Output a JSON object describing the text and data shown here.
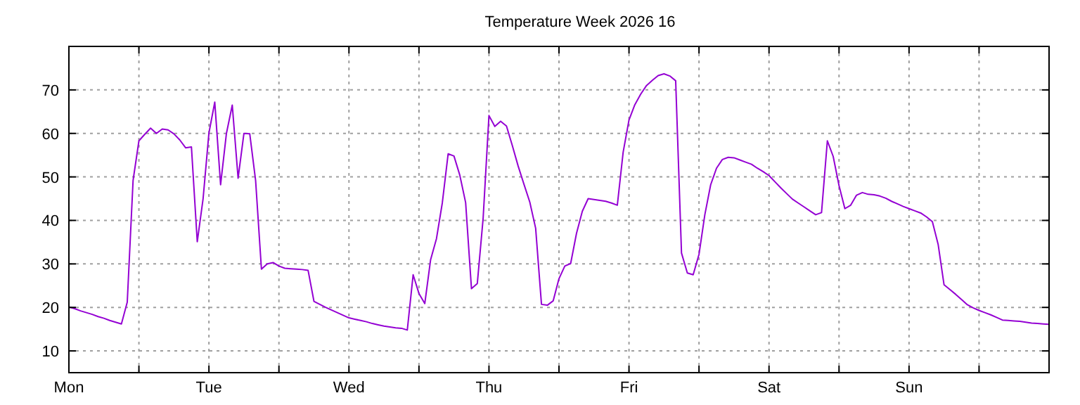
{
  "chart_data": {
    "type": "line",
    "title": "Temperature Week 2026 16",
    "categories": [
      "Mon",
      null,
      null,
      null,
      null,
      null,
      null,
      null,
      null,
      null,
      null,
      null,
      null,
      null,
      null,
      null,
      null,
      null,
      null,
      null,
      null,
      null,
      null,
      null,
      "Tue",
      null,
      null,
      null,
      null,
      null,
      null,
      null,
      null,
      null,
      null,
      null,
      null,
      null,
      null,
      null,
      null,
      null,
      null,
      null,
      null,
      null,
      null,
      null,
      "Wed",
      null,
      null,
      null,
      null,
      null,
      null,
      null,
      null,
      null,
      null,
      null,
      null,
      null,
      null,
      null,
      null,
      null,
      null,
      null,
      null,
      null,
      null,
      null,
      "Thu",
      null,
      null,
      null,
      null,
      null,
      null,
      null,
      null,
      null,
      null,
      null,
      null,
      null,
      null,
      null,
      null,
      null,
      null,
      null,
      null,
      null,
      null,
      null,
      "Fri",
      null,
      null,
      null,
      null,
      null,
      null,
      null,
      null,
      null,
      null,
      null,
      null,
      null,
      null,
      null,
      null,
      null,
      null,
      null,
      null,
      null,
      null,
      null,
      "Sat",
      null,
      null,
      null,
      null,
      null,
      null,
      null,
      null,
      null,
      null,
      null,
      null,
      null,
      null,
      null,
      null,
      null,
      null,
      null,
      null,
      null,
      null,
      null,
      "Sun",
      null,
      null,
      null,
      null,
      null,
      null,
      null,
      null,
      null,
      null,
      null,
      null,
      null,
      null,
      null,
      null,
      null,
      null,
      null,
      null,
      null,
      null,
      null,
      null
    ],
    "ylim": [
      5,
      80
    ],
    "yticks": [
      10,
      20,
      30,
      40,
      50,
      60,
      70
    ],
    "grid": true,
    "marker": "none",
    "line_style": "solid",
    "series": [
      {
        "color": "#9400d3",
        "values": [
          20.1,
          19.7,
          19.2,
          18.8,
          18.4,
          17.9,
          17.5,
          17.0,
          16.6,
          16.2,
          21.2,
          49.2,
          58.3,
          59.8,
          61.2,
          60.0,
          61.0,
          60.8,
          59.9,
          58.5,
          56.7,
          56.9,
          35.1,
          45.0,
          60.1,
          67.2,
          48.2,
          60.0,
          66.5,
          49.7,
          60,
          59.9,
          49.2,
          28.8,
          30.0,
          30.3,
          29.5,
          29.0,
          28.9,
          28.8,
          28.7,
          28.5,
          21.4,
          20.7,
          20.0,
          19.4,
          18.8,
          18.2,
          17.6,
          17.3,
          17.0,
          16.7,
          16.3,
          16.0,
          15.7,
          15.5,
          15.3,
          15.2,
          14.8,
          27.5,
          23.2,
          20.9,
          31.0,
          35.8,
          44.0,
          55.3,
          54.8,
          50.4,
          44.1,
          24.3,
          25.5,
          40.5,
          64.1,
          61.6,
          62.8,
          61.7,
          57.2,
          52.5,
          48.3,
          44.2,
          38.2,
          20.7,
          20.5,
          21.5,
          26.6,
          29.5,
          30.1,
          37.0,
          42.1,
          45.0,
          44.8,
          44.6,
          44.4,
          44.0,
          43.5,
          55.7,
          63.1,
          66.6,
          69.0,
          71.0,
          72.2,
          73.3,
          73.7,
          73.2,
          72.1,
          32.5,
          27.9,
          27.5,
          32.2,
          41.3,
          48.2,
          52.0,
          54.0,
          54.5,
          54.4,
          53.9,
          53.4,
          52.9,
          52.0,
          51.2,
          50.3,
          48.9,
          47.5,
          46.2,
          44.9,
          44.0,
          43.1,
          42.2,
          41.3,
          41.8,
          58.3,
          54.7,
          48.0,
          42.7,
          43.5,
          45.8,
          46.4,
          46.0,
          45.9,
          45.6,
          45.1,
          44.4,
          43.8,
          43.2,
          42.7,
          42.2,
          41.7,
          40.8,
          39.7,
          34.4,
          25.2,
          24.1,
          23.0,
          21.8,
          20.6,
          19.9,
          19.3,
          18.8,
          18.3,
          17.7,
          17.1,
          17.0,
          16.9,
          16.8,
          16.6,
          16.4,
          16.3,
          16.2,
          16.1
        ]
      }
    ]
  }
}
